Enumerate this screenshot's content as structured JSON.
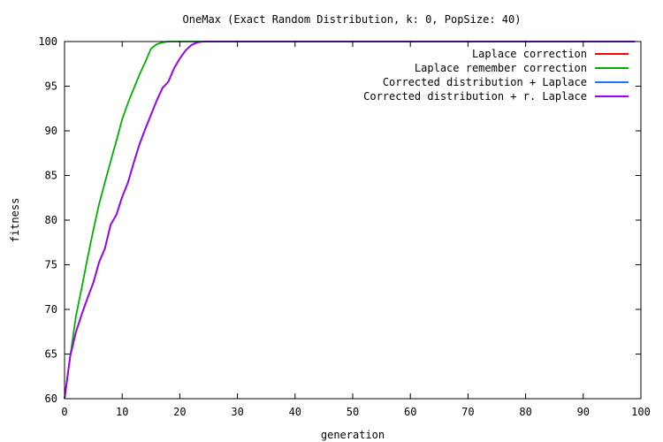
{
  "chart_data": {
    "type": "line",
    "title": "OneMax (Exact Random Distribution, k: 0, PopSize: 40)",
    "xlabel": "generation",
    "ylabel": "fitness",
    "xlim": [
      0,
      100
    ],
    "ylim": [
      60,
      100
    ],
    "xticks": [
      0,
      10,
      20,
      30,
      40,
      50,
      60,
      70,
      80,
      90,
      100
    ],
    "yticks": [
      60,
      65,
      70,
      75,
      80,
      85,
      90,
      95,
      100
    ],
    "grid": false,
    "legend_position": "top-right",
    "series": [
      {
        "name": "Laplace correction",
        "color": "#ff0000",
        "x": [
          0,
          1,
          2,
          3,
          4,
          5,
          6,
          7,
          8,
          9,
          10,
          11,
          12,
          13,
          14,
          15,
          16,
          17,
          18,
          19,
          20,
          21,
          22,
          23,
          24,
          25,
          30,
          40,
          50,
          60,
          70,
          80,
          90,
          99
        ],
        "y": [
          60,
          64.8,
          67.5,
          69.5,
          71.3,
          73,
          75.3,
          76.8,
          79.5,
          80.6,
          82.6,
          84.2,
          86.4,
          88.5,
          90.2,
          91.8,
          93.4,
          94.8,
          95.5,
          97,
          98.1,
          99,
          99.6,
          99.9,
          100,
          100,
          100,
          100,
          100,
          100,
          100,
          100,
          100,
          100
        ]
      },
      {
        "name": "Laplace remember correction",
        "color": "#00b000",
        "x": [
          0,
          1,
          2,
          3,
          4,
          5,
          6,
          7,
          8,
          9,
          10,
          11,
          12,
          13,
          14,
          15,
          16,
          17,
          18,
          19,
          20,
          25,
          30,
          40,
          50,
          60,
          70,
          80,
          90,
          99
        ],
        "y": [
          60,
          64.8,
          69.3,
          72.5,
          75.8,
          78.9,
          81.8,
          84.2,
          86.6,
          88.9,
          91.3,
          93.1,
          94.7,
          96.3,
          97.7,
          99.2,
          99.7,
          99.9,
          100,
          100,
          100,
          100,
          100,
          100,
          100,
          100,
          100,
          100,
          100,
          100
        ]
      },
      {
        "name": "Corrected distribution + Laplace",
        "color": "#1e78ff",
        "x": [
          0,
          1,
          2,
          3,
          4,
          5,
          6,
          7,
          8,
          9,
          10,
          11,
          12,
          13,
          14,
          15,
          16,
          17,
          18,
          19,
          20,
          21,
          22,
          23,
          24,
          25,
          30,
          40,
          50,
          60,
          70,
          80,
          90,
          99
        ],
        "y": [
          60,
          64.8,
          67.5,
          69.5,
          71.3,
          73,
          75.3,
          76.8,
          79.5,
          80.6,
          82.6,
          84.2,
          86.4,
          88.5,
          90.2,
          91.8,
          93.4,
          94.8,
          95.5,
          97,
          98.1,
          99,
          99.6,
          99.9,
          100,
          100,
          100,
          100,
          100,
          100,
          100,
          100,
          100,
          100
        ]
      },
      {
        "name": "Corrected distribution + r. Laplace",
        "color": "#9b00ff",
        "x": [
          0,
          1,
          2,
          3,
          4,
          5,
          6,
          7,
          8,
          9,
          10,
          11,
          12,
          13,
          14,
          15,
          16,
          17,
          18,
          19,
          20,
          21,
          22,
          23,
          24,
          25,
          30,
          40,
          50,
          60,
          70,
          80,
          90,
          99
        ],
        "y": [
          60,
          64.8,
          67.5,
          69.5,
          71.3,
          73,
          75.3,
          76.8,
          79.5,
          80.6,
          82.6,
          84.2,
          86.4,
          88.5,
          90.2,
          91.8,
          93.4,
          94.8,
          95.5,
          97,
          98.1,
          99,
          99.6,
          99.9,
          100,
          100,
          100,
          100,
          100,
          100,
          100,
          100,
          100,
          100
        ]
      }
    ]
  }
}
